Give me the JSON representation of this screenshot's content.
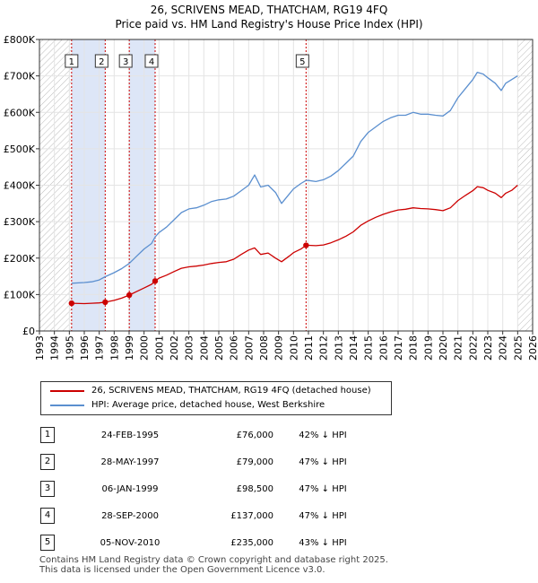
{
  "title_line1": "26, SCRIVENS MEAD, THATCHAM, RG19 4FQ",
  "title_line2": "Price paid vs. HM Land Registry's House Price Index (HPI)",
  "colors": {
    "property": "#cc0000",
    "hpi": "#5b8fcf",
    "shade": "#dde6f7",
    "vline": "#cc0000"
  },
  "legend": {
    "property": "26, SCRIVENS MEAD, THATCHAM, RG19 4FQ (detached house)",
    "hpi": "HPI: Average price, detached house, West Berkshire"
  },
  "sales": [
    {
      "num": "1",
      "date": "24-FEB-1995",
      "price": "£76,000",
      "hpi": "42% ↓ HPI"
    },
    {
      "num": "2",
      "date": "28-MAY-1997",
      "price": "£79,000",
      "hpi": "47% ↓ HPI"
    },
    {
      "num": "3",
      "date": "06-JAN-1999",
      "price": "£98,500",
      "hpi": "47% ↓ HPI"
    },
    {
      "num": "4",
      "date": "28-SEP-2000",
      "price": "£137,000",
      "hpi": "47% ↓ HPI"
    },
    {
      "num": "5",
      "date": "05-NOV-2010",
      "price": "£235,000",
      "hpi": "43% ↓ HPI"
    }
  ],
  "footer_line1": "Contains HM Land Registry data © Crown copyright and database right 2025.",
  "footer_line2": "This data is licensed under the Open Government Licence v3.0.",
  "chart_data": {
    "type": "line",
    "title": "26, SCRIVENS MEAD, THATCHAM, RG19 4FQ",
    "subtitle": "Price paid vs. HM Land Registry's House Price Index (HPI)",
    "xlabel": "",
    "ylabel": "",
    "xlim": [
      1993,
      2026
    ],
    "ylim": [
      0,
      800000
    ],
    "x_ticks": [
      "1993",
      "1994",
      "1995",
      "1996",
      "1997",
      "1998",
      "1999",
      "2000",
      "2001",
      "2002",
      "2003",
      "2004",
      "2005",
      "2006",
      "2007",
      "2008",
      "2009",
      "2010",
      "2011",
      "2012",
      "2013",
      "2014",
      "2015",
      "2016",
      "2017",
      "2018",
      "2019",
      "2020",
      "2021",
      "2022",
      "2023",
      "2024",
      "2025",
      "2026"
    ],
    "y_ticks": [
      {
        "value": 0,
        "label": "£0"
      },
      {
        "value": 100000,
        "label": "£100K"
      },
      {
        "value": 200000,
        "label": "£200K"
      },
      {
        "value": 300000,
        "label": "£300K"
      },
      {
        "value": 400000,
        "label": "£400K"
      },
      {
        "value": 500000,
        "label": "£500K"
      },
      {
        "value": 600000,
        "label": "£600K"
      },
      {
        "value": 700000,
        "label": "£700K"
      },
      {
        "value": 800000,
        "label": "£800K"
      }
    ],
    "hatched_ranges": [
      [
        1993,
        1995.15
      ],
      [
        2025.0,
        2026
      ]
    ],
    "shaded_ranges": [
      [
        1995.15,
        1997.4
      ],
      [
        1999.01,
        2000.74
      ]
    ],
    "grid": true,
    "series": [
      {
        "name": "HPI: Average price, detached house, West Berkshire",
        "x": [
          1995.15,
          1996,
          1996.5,
          1997,
          1997.4,
          1998,
          1998.5,
          1999,
          1999.5,
          2000,
          2000.5,
          2000.74,
          2001,
          2001.5,
          2002,
          2002.5,
          2003,
          2003.5,
          2004,
          2004.5,
          2005,
          2005.5,
          2006,
          2006.5,
          2007,
          2007.4,
          2007.8,
          2008.3,
          2008.8,
          2009.2,
          2009.7,
          2010,
          2010.5,
          2010.84,
          2011,
          2011.5,
          2012,
          2012.5,
          2013,
          2013.5,
          2014,
          2014.5,
          2015,
          2015.5,
          2016,
          2016.5,
          2017,
          2017.5,
          2018,
          2018.5,
          2019,
          2019.5,
          2020,
          2020.5,
          2021,
          2021.5,
          2022,
          2022.3,
          2022.7,
          2023,
          2023.5,
          2023.9,
          2024.2,
          2024.6,
          2025
        ],
        "values": [
          131000,
          133000,
          135000,
          140000,
          149000,
          160000,
          171000,
          185000,
          205000,
          225000,
          240000,
          258000,
          270000,
          285000,
          305000,
          325000,
          335000,
          338000,
          345000,
          355000,
          360000,
          362000,
          370000,
          385000,
          400000,
          428000,
          395000,
          400000,
          380000,
          350000,
          375000,
          390000,
          405000,
          413000,
          413000,
          410000,
          415000,
          425000,
          440000,
          460000,
          480000,
          520000,
          545000,
          560000,
          575000,
          585000,
          592000,
          592000,
          600000,
          595000,
          595000,
          592000,
          590000,
          605000,
          640000,
          665000,
          690000,
          710000,
          705000,
          695000,
          680000,
          660000,
          680000,
          690000,
          700000
        ]
      },
      {
        "name": "26, SCRIVENS MEAD, THATCHAM, RG19 4FQ (detached house)",
        "x": [
          1995.15,
          1996,
          1996.5,
          1997,
          1997.4,
          1998,
          1998.5,
          1999.01,
          1999.5,
          2000,
          2000.5,
          2000.74,
          2001,
          2001.5,
          2002,
          2002.5,
          2003,
          2003.5,
          2004,
          2004.5,
          2005,
          2005.5,
          2006,
          2006.5,
          2007,
          2007.4,
          2007.8,
          2008.3,
          2008.8,
          2009.2,
          2009.7,
          2010,
          2010.5,
          2010.84,
          2011,
          2011.5,
          2012,
          2012.5,
          2013,
          2013.5,
          2014,
          2014.5,
          2015,
          2015.5,
          2016,
          2016.5,
          2017,
          2017.5,
          2018,
          2018.5,
          2019,
          2019.5,
          2020,
          2020.5,
          2021,
          2021.5,
          2022,
          2022.3,
          2022.7,
          2023,
          2023.5,
          2023.9,
          2024.2,
          2024.6,
          2025
        ],
        "values": [
          76000,
          75000,
          76000,
          77000,
          79000,
          84000,
          90000,
          98500,
          108000,
          118000,
          128000,
          137000,
          145000,
          153000,
          163000,
          172000,
          176000,
          178000,
          181000,
          185000,
          188000,
          190000,
          197000,
          210000,
          222000,
          228000,
          210000,
          214000,
          200000,
          190000,
          205000,
          215000,
          225000,
          235000,
          235000,
          234000,
          236000,
          242000,
          250000,
          260000,
          272000,
          290000,
          302000,
          312000,
          320000,
          327000,
          332000,
          334000,
          338000,
          336000,
          335000,
          333000,
          330000,
          338000,
          358000,
          372000,
          385000,
          396000,
          393000,
          386000,
          378000,
          366000,
          378000,
          386000,
          400000
        ]
      }
    ],
    "sale_points": [
      {
        "label": "1",
        "x": 1995.15,
        "value": 76000
      },
      {
        "label": "2",
        "x": 1997.4,
        "value": 79000
      },
      {
        "label": "3",
        "x": 1999.01,
        "value": 98500
      },
      {
        "label": "4",
        "x": 2000.74,
        "value": 137000
      },
      {
        "label": "5",
        "x": 2010.84,
        "value": 235000
      }
    ]
  }
}
